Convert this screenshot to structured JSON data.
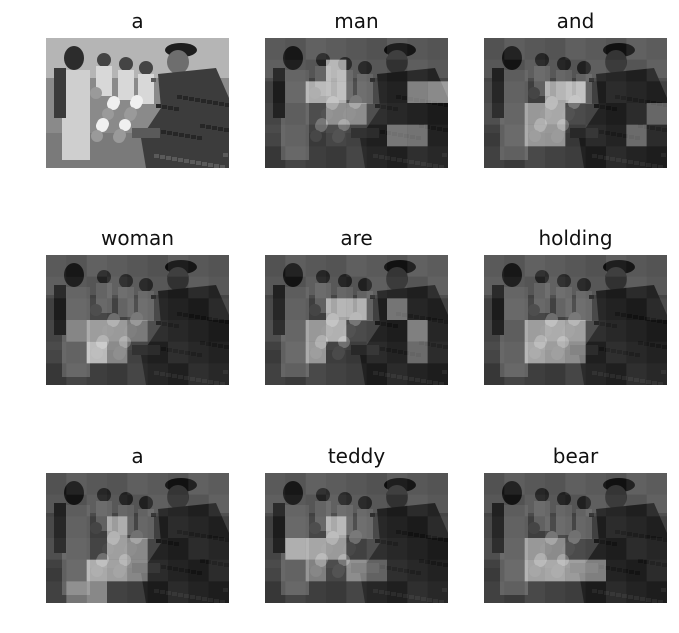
{
  "figure": {
    "panels": [
      {
        "word": "a",
        "highlight": []
      },
      {
        "word": "man",
        "highlight": [
          [
            3,
            1,
            0.55
          ],
          [
            3,
            2,
            0.6
          ],
          [
            2,
            2,
            0.55
          ],
          [
            7,
            2,
            0.45
          ],
          [
            8,
            2,
            0.45
          ],
          [
            3,
            3,
            0.4
          ],
          [
            6,
            4,
            0.35
          ],
          [
            7,
            4,
            0.35
          ],
          [
            4,
            3,
            0.4
          ]
        ]
      },
      {
        "word": "and",
        "highlight": [
          [
            3,
            2,
            0.5
          ],
          [
            4,
            2,
            0.6
          ],
          [
            3,
            3,
            0.55
          ],
          [
            2,
            3,
            0.45
          ],
          [
            2,
            4,
            0.45
          ],
          [
            3,
            4,
            0.45
          ],
          [
            7,
            4,
            0.35
          ],
          [
            8,
            3,
            0.3
          ]
        ]
      },
      {
        "word": "woman",
        "highlight": [
          [
            2,
            3,
            0.45
          ],
          [
            3,
            3,
            0.45
          ],
          [
            2,
            4,
            0.65
          ],
          [
            3,
            4,
            0.35
          ],
          [
            4,
            3,
            0.3
          ],
          [
            1,
            3,
            0.25
          ]
        ]
      },
      {
        "word": "are",
        "highlight": [
          [
            3,
            2,
            0.5
          ],
          [
            4,
            2,
            0.5
          ],
          [
            2,
            3,
            0.45
          ],
          [
            3,
            3,
            0.6
          ],
          [
            2,
            4,
            0.45
          ],
          [
            7,
            3,
            0.4
          ],
          [
            7,
            4,
            0.35
          ],
          [
            6,
            2,
            0.35
          ]
        ]
      },
      {
        "word": "holding",
        "highlight": [
          [
            3,
            3,
            0.55
          ],
          [
            4,
            3,
            0.5
          ],
          [
            2,
            3,
            0.45
          ],
          [
            2,
            4,
            0.55
          ],
          [
            3,
            4,
            0.45
          ],
          [
            4,
            4,
            0.4
          ]
        ]
      },
      {
        "word": "a",
        "highlight": [
          [
            3,
            2,
            0.45
          ],
          [
            3,
            3,
            0.5
          ],
          [
            2,
            4,
            0.55
          ],
          [
            3,
            4,
            0.5
          ],
          [
            4,
            4,
            0.4
          ],
          [
            4,
            3,
            0.35
          ],
          [
            1,
            5,
            0.3
          ],
          [
            2,
            5,
            0.35
          ]
        ]
      },
      {
        "word": "teddy",
        "highlight": [
          [
            1,
            3,
            0.5
          ],
          [
            2,
            3,
            0.5
          ],
          [
            3,
            3,
            0.45
          ],
          [
            3,
            2,
            0.55
          ],
          [
            4,
            4,
            0.4
          ],
          [
            2,
            4,
            0.35
          ],
          [
            5,
            4,
            0.3
          ]
        ]
      },
      {
        "word": "bear",
        "highlight": [
          [
            2,
            3,
            0.45
          ],
          [
            3,
            3,
            0.4
          ],
          [
            2,
            4,
            0.5
          ],
          [
            3,
            4,
            0.55
          ],
          [
            4,
            4,
            0.5
          ],
          [
            5,
            4,
            0.4
          ]
        ]
      }
    ],
    "grid": {
      "cols": 9,
      "rows": 6
    }
  }
}
